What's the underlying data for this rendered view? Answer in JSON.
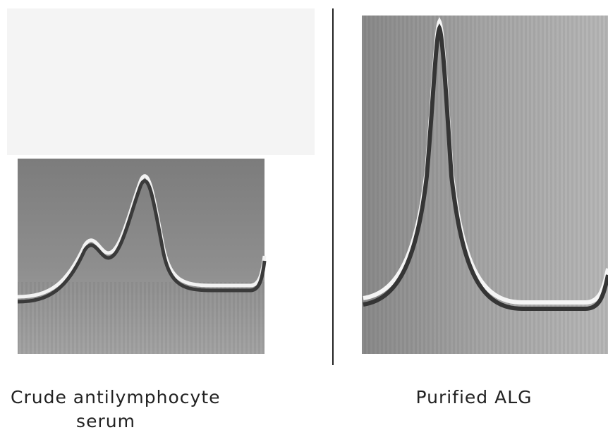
{
  "panels": [
    {
      "caption": [
        "Crude antilymphocyte",
        "serum"
      ]
    },
    {
      "caption": [
        "Purified ALG"
      ]
    }
  ]
}
